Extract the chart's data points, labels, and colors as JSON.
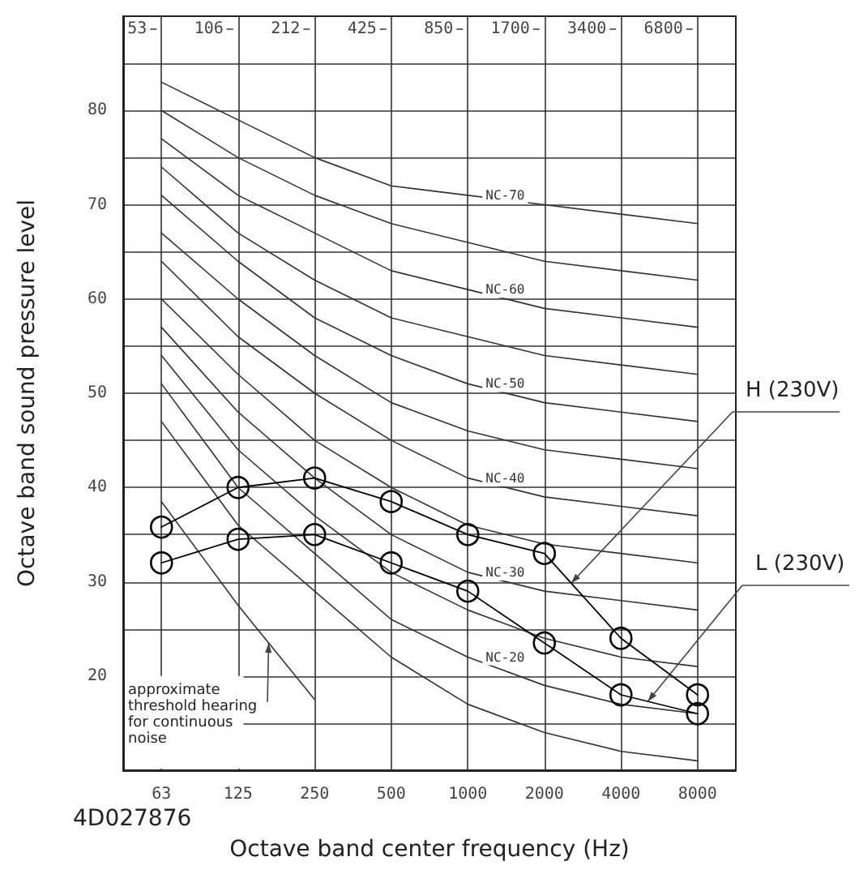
{
  "chart_data": {
    "type": "line",
    "xlabel": "Octave band center frequency (Hz)",
    "ylabel": "Octave band sound pressure level",
    "categories": [
      "63",
      "125",
      "250",
      "500",
      "1000",
      "2000",
      "4000",
      "8000"
    ],
    "ylim": [
      10,
      90
    ],
    "yticks": [
      {
        "value": 15,
        "label": null
      },
      20,
      {
        "value": 25,
        "label": null
      },
      30,
      {
        "value": 35,
        "label": null
      },
      40,
      {
        "value": 45,
        "label": null
      },
      50,
      {
        "value": 55,
        "label": null
      },
      60,
      {
        "value": 65,
        "label": null
      },
      70,
      {
        "value": 75,
        "label": null
      },
      80,
      {
        "value": 85,
        "label": null
      }
    ],
    "grid": true,
    "marker": "none",
    "line_style": "solid",
    "series": [
      {
        "name": "H (230V)",
        "color": "#000000",
        "marker": "circle",
        "values": [
          35.8,
          40,
          41,
          38.5,
          35,
          33,
          24,
          18
        ]
      },
      {
        "name": "L (230V)",
        "color": "#000000",
        "marker": "circle",
        "values": [
          32,
          34.5,
          35,
          32,
          29,
          23.5,
          18,
          16
        ]
      },
      {
        "name": "NC-70",
        "color": "#333333",
        "values": [
          83,
          79,
          75,
          72,
          71,
          70,
          69,
          68
        ]
      },
      {
        "color": "#333333",
        "values": [
          80,
          75,
          71,
          68,
          66,
          64,
          63,
          62
        ]
      },
      {
        "name": "NC-60",
        "color": "#333333",
        "values": [
          77,
          71,
          67,
          63,
          61,
          59,
          58,
          57
        ]
      },
      {
        "color": "#333333",
        "values": [
          74,
          67,
          62,
          58,
          56,
          54,
          53,
          52
        ]
      },
      {
        "name": "NC-50",
        "color": "#333333",
        "values": [
          71,
          64,
          58,
          54,
          51,
          49,
          48,
          47
        ]
      },
      {
        "color": "#333333",
        "values": [
          67,
          60,
          54,
          49,
          46,
          44,
          43,
          42
        ]
      },
      {
        "name": "NC-40",
        "color": "#333333",
        "values": [
          64,
          56,
          50,
          45,
          41,
          39,
          38,
          37
        ]
      },
      {
        "color": "#333333",
        "values": [
          60,
          52,
          45,
          40,
          36,
          34,
          33,
          32
        ]
      },
      {
        "name": "NC-30",
        "color": "#333333",
        "values": [
          57,
          48,
          41,
          35,
          31,
          29,
          28,
          27
        ]
      },
      {
        "color": "#333333",
        "values": [
          54,
          44,
          37,
          31,
          27,
          24,
          22,
          21
        ]
      },
      {
        "name": "NC-20",
        "color": "#333333",
        "values": [
          51,
          40,
          33,
          26,
          22,
          19,
          17,
          16
        ]
      },
      {
        "color": "#333333",
        "values": [
          47,
          36,
          29,
          22,
          17,
          14,
          12,
          11
        ]
      },
      {
        "name": "approximate threshold hearing for continuous noise",
        "color": "#333333",
        "values": [
          38.5,
          27.5,
          17.5,
          null,
          null,
          null,
          null,
          null
        ]
      }
    ],
    "annotations": [
      "53",
      "106",
      "212",
      "425",
      "850",
      "1700",
      "3400",
      "6800",
      "4D027876"
    ]
  }
}
